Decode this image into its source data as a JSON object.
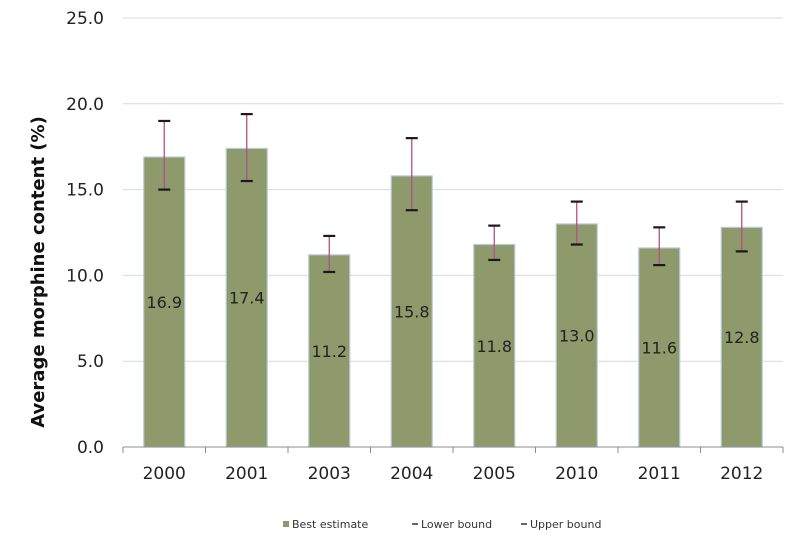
{
  "chart_data": {
    "type": "bar",
    "categories": [
      "2000",
      "2001",
      "2003",
      "2004",
      "2005",
      "2010",
      "2011",
      "2012"
    ],
    "series": [
      {
        "name": "Best estimate",
        "values": [
          16.9,
          17.4,
          11.2,
          15.8,
          11.8,
          13.0,
          11.6,
          12.8
        ]
      },
      {
        "name": "Lower bound",
        "values": [
          15.0,
          15.5,
          10.2,
          13.8,
          10.9,
          11.8,
          10.6,
          11.4
        ]
      },
      {
        "name": "Upper bound",
        "values": [
          19.0,
          19.4,
          12.3,
          18.0,
          12.9,
          14.3,
          12.8,
          14.3
        ]
      }
    ],
    "data_labels": [
      "16.9",
      "17.4",
      "11.2",
      "15.8",
      "11.8",
      "13.0",
      "11.6",
      "12.8"
    ],
    "ylabel": "Average morphine content (%)",
    "xlabel": "",
    "ylim": [
      0,
      25
    ],
    "yticks": [
      "0.0",
      "5.0",
      "10.0",
      "15.0",
      "20.0",
      "25.0"
    ],
    "grid": true,
    "legend_position": "bottom",
    "colors": {
      "bar": "#8e9a6c",
      "bar_edge": "#b9cbd6",
      "error_bar": "#b0508a",
      "cap": "#1a1a1a",
      "grid": "#d9d9d9",
      "axis": "#8c8c8c"
    }
  }
}
